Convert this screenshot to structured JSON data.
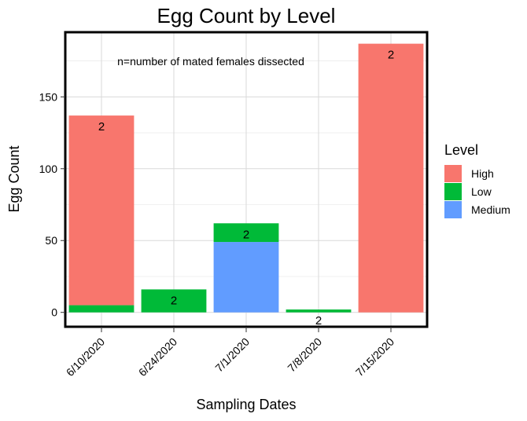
{
  "chart_data": {
    "type": "bar",
    "stacked": true,
    "title": "Egg Count by Level",
    "xlabel": "Sampling Dates",
    "ylabel": "Egg Count",
    "annotation": "n=number of mated females dissected",
    "categories": [
      "6/10/2020",
      "6/24/2020",
      "7/1/2020",
      "7/8/2020",
      "7/15/2020"
    ],
    "stack_order": [
      "Medium",
      "Low",
      "High"
    ],
    "series": [
      {
        "name": "High",
        "color": "#F8766D",
        "values": [
          132,
          0,
          0,
          0,
          187
        ]
      },
      {
        "name": "Low",
        "color": "#00BA38",
        "values": [
          5,
          16,
          13,
          2,
          0
        ]
      },
      {
        "name": "Medium",
        "color": "#619CFF",
        "values": [
          0,
          0,
          49,
          0,
          0
        ]
      }
    ],
    "n_labels": [
      "2",
      "2",
      "2",
      "2",
      "2"
    ],
    "yticks": [
      0,
      50,
      100,
      150
    ],
    "ylim": [
      -10,
      195
    ],
    "grid": true,
    "legend": {
      "title": "Level",
      "position": "right",
      "items": [
        "High",
        "Low",
        "Medium"
      ]
    }
  }
}
